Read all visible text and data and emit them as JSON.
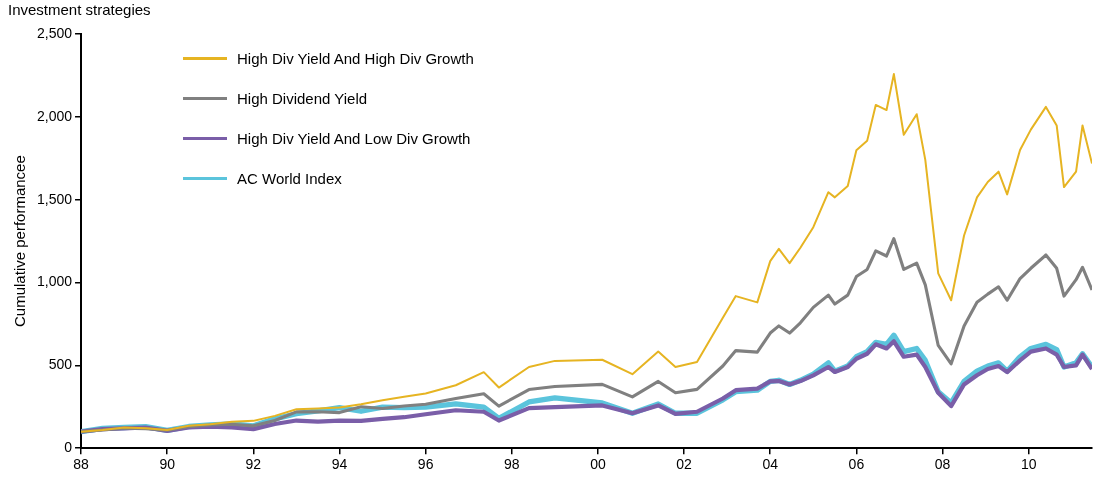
{
  "chart_data": {
    "type": "line",
    "title": "Investment strategies",
    "ylabel": "Cumulative performancee",
    "x": [
      1988,
      1988.5,
      1989,
      1989.5,
      1990,
      1990.5,
      1991,
      1991.5,
      1992,
      1992.5,
      1993,
      1993.5,
      1994,
      1994.5,
      1995,
      1995.5,
      1996,
      1996.7,
      1997.35,
      1997.7,
      1998.4,
      1999,
      2000.1,
      2000.8,
      2001.4,
      2001.8,
      2002.3,
      2002.9,
      2003.2,
      2003.7,
      2004,
      2004.2,
      2004.45,
      2004.7,
      2005,
      2005.35,
      2005.5,
      2005.8,
      2006,
      2006.25,
      2006.45,
      2006.7,
      2006.87,
      2007.1,
      2007.4,
      2007.6,
      2007.9,
      2008.2,
      2008.5,
      2008.8,
      2009.05,
      2009.3,
      2009.5,
      2009.8,
      2010.05,
      2010.4,
      2010.65,
      2010.82,
      2011.1,
      2011.25,
      2011.47
    ],
    "series": [
      {
        "name": "High Div Yield And High Div Growth",
        "color": "#e6b422",
        "values": [
          100,
          110,
          125,
          120,
          110,
          135,
          145,
          160,
          165,
          195,
          235,
          240,
          245,
          265,
          290,
          310,
          330,
          380,
          459,
          366,
          490,
          527,
          534,
          447,
          583,
          490,
          520,
          788,
          918,
          880,
          1129,
          1203,
          1117,
          1210,
          1334,
          1545,
          1514,
          1582,
          1799,
          1855,
          2072,
          2041,
          2258,
          1892,
          2016,
          1740,
          1055,
          893,
          1284,
          1514,
          1607,
          1669,
          1532,
          1800,
          1923,
          2060,
          1948,
          1576,
          1669,
          1948,
          1718
        ]
      },
      {
        "name": "High Dividend Yield",
        "color": "#808080",
        "values": [
          100,
          110,
          120,
          118,
          108,
          130,
          140,
          145,
          135,
          167,
          219,
          220,
          215,
          250,
          240,
          255,
          265,
          300,
          329,
          254,
          354,
          372,
          385,
          310,
          403,
          335,
          355,
          496,
          589,
          580,
          695,
          738,
          695,
          757,
          850,
          924,
          870,
          924,
          1036,
          1079,
          1191,
          1160,
          1265,
          1079,
          1117,
          986,
          620,
          509,
          738,
          881,
          930,
          974,
          893,
          1024,
          1086,
          1166,
          1086,
          918,
          1017,
          1092,
          955
        ]
      },
      {
        "name": "High Div Yield And Low Div Growth",
        "color": "#7a5ea8",
        "values": [
          100,
          115,
          120,
          125,
          105,
          125,
          130,
          125,
          115,
          146,
          167,
          160,
          167,
          165,
          177,
          187,
          205,
          229,
          220,
          167,
          242,
          248,
          258,
          211,
          258,
          207,
          220,
          300,
          350,
          360,
          403,
          405,
          385,
          405,
          440,
          490,
          460,
          490,
          540,
          570,
          627,
          602,
          645,
          552,
          565,
          490,
          335,
          254,
          385,
          440,
          478,
          496,
          459,
          530,
          583,
          602,
          565,
          490,
          500,
          565,
          478
        ]
      },
      {
        "name": "AC World Index",
        "color": "#5bc4dc",
        "values": [
          100,
          120,
          125,
          130,
          108,
          131,
          140,
          146,
          135,
          177,
          208,
          225,
          245,
          223,
          248,
          245,
          248,
          267,
          248,
          180,
          279,
          304,
          273,
          211,
          267,
          211,
          211,
          292,
          341,
          350,
          403,
          410,
          385,
          410,
          447,
          515,
          465,
          496,
          552,
          583,
          639,
          627,
          682,
          583,
          602,
          530,
          341,
          273,
          403,
          465,
          496,
          515,
          465,
          552,
          602,
          627,
          595,
          490,
          515,
          570,
          490
        ]
      }
    ],
    "xlim": [
      1988,
      2011.47
    ],
    "xticks": [
      {
        "value": 1988,
        "label": "88"
      },
      {
        "value": 1990,
        "label": "90"
      },
      {
        "value": 1992,
        "label": "92"
      },
      {
        "value": 1994,
        "label": "94"
      },
      {
        "value": 1996,
        "label": "96"
      },
      {
        "value": 1998,
        "label": "98"
      },
      {
        "value": 2000,
        "label": "00"
      },
      {
        "value": 2002,
        "label": "02"
      },
      {
        "value": 2004,
        "label": "04"
      },
      {
        "value": 2006,
        "label": "06"
      },
      {
        "value": 2008,
        "label": "08"
      },
      {
        "value": 2010,
        "label": "10"
      }
    ],
    "ylim": [
      0,
      2500
    ],
    "yticks": [
      0,
      500,
      {
        "value": 1000,
        "label": "1,000"
      },
      {
        "value": 1500,
        "label": "1,500"
      },
      {
        "value": 2000,
        "label": "2,000"
      },
      {
        "value": 2500,
        "label": "2,500"
      }
    ],
    "grid": false,
    "legend": "top left",
    "marker": "none",
    "line_style": "solid"
  }
}
